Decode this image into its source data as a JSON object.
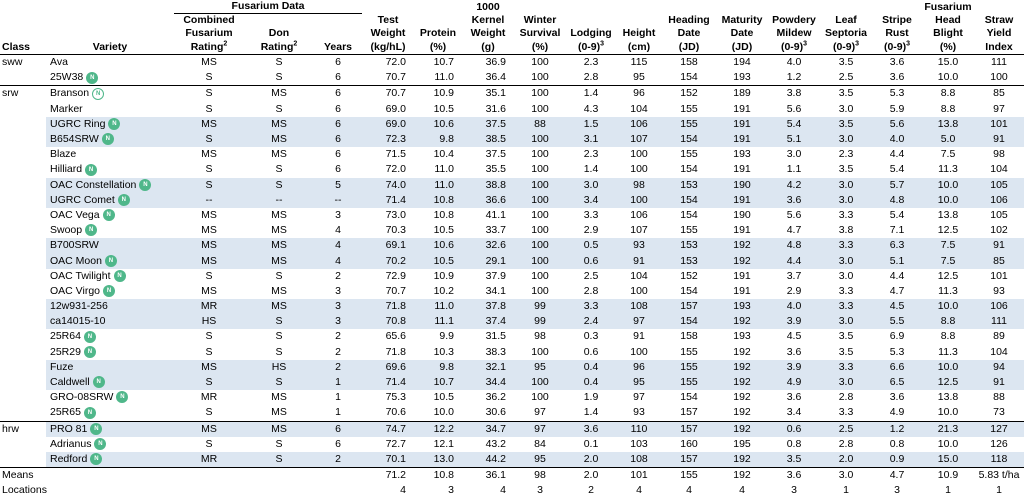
{
  "header": {
    "group_fusarium": "Fusarium Data",
    "group_kernel": "1000",
    "cols": {
      "class": "Class",
      "variety": "Variety",
      "combined_l1": "Combined",
      "combined_l2": "Fusarium",
      "combined_l3": "Rating",
      "combined_sup": "2",
      "don_l2": "Don",
      "don_l3": "Rating",
      "don_sup": "2",
      "years": "Years",
      "test_l2": "Test",
      "test_l3": "Weight",
      "test_l4": "(kg/hL)",
      "protein_l3": "Protein",
      "protein_l4": "(%)",
      "kernel_l2": "Kernel",
      "kernel_l3": "Weight",
      "kernel_l4": "(g)",
      "winter_l2": "Winter",
      "winter_l3": "Survival",
      "winter_l4": "(%)",
      "lodging_l3": "Lodging",
      "lodging_l4": "(0-9)",
      "lodging_sup": "3",
      "height_l3": "Height",
      "height_l4": "(cm)",
      "heading_l2": "Heading",
      "heading_l3": "Date",
      "heading_l4": "(JD)",
      "maturity_l2": "Maturity",
      "maturity_l3": "Date",
      "maturity_l4": "(JD)",
      "powdery_l2": "Powdery",
      "powdery_l3": "Mildew",
      "powdery_l4": "(0-9)",
      "powdery_sup": "3",
      "leaf_l2": "Leaf",
      "leaf_l3": "Septoria",
      "leaf_l4": "(0-9)",
      "leaf_sup": "3",
      "stripe_l2": "Stripe",
      "stripe_l3": "Rust",
      "stripe_l4": "(0-9)",
      "stripe_sup": "3",
      "fhb_l1": "Fusarium",
      "fhb_l2": "Head",
      "fhb_l3": "Blight",
      "fhb_l4": "(%)",
      "straw_l2": "Straw",
      "straw_l3": "Yield",
      "straw_l4": "Index"
    }
  },
  "badge_text": "N",
  "accent_color": "#4fb78a",
  "shade_color": "#dce6f1",
  "rows": [
    {
      "cls": "sww",
      "variety": "Ava",
      "badge": "",
      "shaded": false,
      "group_start": false,
      "cfr": "MS",
      "don": "S",
      "years": "6",
      "test": "72.0",
      "protein": "10.7",
      "kernel": "36.9",
      "winter": "100",
      "lodging": "2.3",
      "height": "115",
      "heading": "158",
      "maturity": "194",
      "powdery": "4.0",
      "leaf": "3.5",
      "stripe": "3.6",
      "fhb": "15.0",
      "straw": "111"
    },
    {
      "cls": "",
      "variety": "25W38",
      "badge": "solid",
      "shaded": false,
      "group_start": false,
      "cfr": "S",
      "don": "S",
      "years": "6",
      "test": "70.7",
      "protein": "11.0",
      "kernel": "36.4",
      "winter": "100",
      "lodging": "2.8",
      "height": "95",
      "heading": "154",
      "maturity": "193",
      "powdery": "1.2",
      "leaf": "2.5",
      "stripe": "3.6",
      "fhb": "10.0",
      "straw": "100"
    },
    {
      "cls": "srw",
      "variety": "Branson",
      "badge": "outline",
      "shaded": false,
      "group_start": true,
      "cfr": "S",
      "don": "MS",
      "years": "6",
      "test": "70.7",
      "protein": "10.9",
      "kernel": "35.1",
      "winter": "100",
      "lodging": "1.4",
      "height": "96",
      "heading": "152",
      "maturity": "189",
      "powdery": "3.8",
      "leaf": "3.5",
      "stripe": "5.3",
      "fhb": "8.8",
      "straw": "85"
    },
    {
      "cls": "",
      "variety": "Marker",
      "badge": "",
      "shaded": false,
      "group_start": false,
      "cfr": "S",
      "don": "S",
      "years": "6",
      "test": "69.0",
      "protein": "10.5",
      "kernel": "31.6",
      "winter": "100",
      "lodging": "4.3",
      "height": "104",
      "heading": "155",
      "maturity": "191",
      "powdery": "5.6",
      "leaf": "3.0",
      "stripe": "5.9",
      "fhb": "8.8",
      "straw": "97"
    },
    {
      "cls": "",
      "variety": "UGRC Ring",
      "badge": "solid",
      "shaded": true,
      "group_start": false,
      "cfr": "MS",
      "don": "MS",
      "years": "6",
      "test": "69.0",
      "protein": "10.6",
      "kernel": "37.5",
      "winter": "88",
      "lodging": "1.5",
      "height": "106",
      "heading": "155",
      "maturity": "191",
      "powdery": "5.4",
      "leaf": "3.5",
      "stripe": "5.6",
      "fhb": "13.8",
      "straw": "101"
    },
    {
      "cls": "",
      "variety": "B654SRW",
      "badge": "solid",
      "shaded": true,
      "group_start": false,
      "cfr": "S",
      "don": "MS",
      "years": "6",
      "test": "72.3",
      "protein": "9.8",
      "kernel": "38.5",
      "winter": "100",
      "lodging": "3.1",
      "height": "107",
      "heading": "154",
      "maturity": "191",
      "powdery": "5.1",
      "leaf": "3.0",
      "stripe": "4.0",
      "fhb": "5.0",
      "straw": "91"
    },
    {
      "cls": "",
      "variety": "Blaze",
      "badge": "",
      "shaded": false,
      "group_start": false,
      "cfr": "MS",
      "don": "MS",
      "years": "6",
      "test": "71.5",
      "protein": "10.4",
      "kernel": "37.5",
      "winter": "100",
      "lodging": "2.3",
      "height": "100",
      "heading": "155",
      "maturity": "193",
      "powdery": "3.0",
      "leaf": "2.3",
      "stripe": "4.4",
      "fhb": "7.5",
      "straw": "98"
    },
    {
      "cls": "",
      "variety": "Hilliard",
      "badge": "solid",
      "shaded": false,
      "group_start": false,
      "cfr": "S",
      "don": "S",
      "years": "6",
      "test": "72.0",
      "protein": "11.0",
      "kernel": "35.5",
      "winter": "100",
      "lodging": "1.4",
      "height": "100",
      "heading": "154",
      "maturity": "191",
      "powdery": "1.1",
      "leaf": "3.5",
      "stripe": "5.4",
      "fhb": "11.3",
      "straw": "104"
    },
    {
      "cls": "",
      "variety": "OAC Constellation",
      "badge": "solid",
      "shaded": true,
      "group_start": false,
      "cfr": "S",
      "don": "S",
      "years": "5",
      "test": "74.0",
      "protein": "11.0",
      "kernel": "38.8",
      "winter": "100",
      "lodging": "3.0",
      "height": "98",
      "heading": "153",
      "maturity": "190",
      "powdery": "4.2",
      "leaf": "3.0",
      "stripe": "5.7",
      "fhb": "10.0",
      "straw": "105"
    },
    {
      "cls": "",
      "variety": "UGRC Comet",
      "badge": "solid",
      "shaded": true,
      "group_start": false,
      "cfr": "--",
      "don": "--",
      "years": "--",
      "test": "71.4",
      "protein": "10.8",
      "kernel": "36.6",
      "winter": "100",
      "lodging": "3.4",
      "height": "100",
      "heading": "154",
      "maturity": "191",
      "powdery": "3.6",
      "leaf": "3.0",
      "stripe": "4.8",
      "fhb": "10.0",
      "straw": "106"
    },
    {
      "cls": "",
      "variety": "OAC Vega",
      "badge": "solid",
      "shaded": false,
      "group_start": false,
      "cfr": "MS",
      "don": "MS",
      "years": "3",
      "test": "73.0",
      "protein": "10.8",
      "kernel": "41.1",
      "winter": "100",
      "lodging": "3.3",
      "height": "106",
      "heading": "154",
      "maturity": "190",
      "powdery": "5.6",
      "leaf": "3.3",
      "stripe": "5.4",
      "fhb": "13.8",
      "straw": "105"
    },
    {
      "cls": "",
      "variety": "Swoop",
      "badge": "solid",
      "shaded": false,
      "group_start": false,
      "cfr": "MS",
      "don": "MS",
      "years": "4",
      "test": "70.3",
      "protein": "10.5",
      "kernel": "33.7",
      "winter": "100",
      "lodging": "2.9",
      "height": "107",
      "heading": "155",
      "maturity": "191",
      "powdery": "4.7",
      "leaf": "3.8",
      "stripe": "7.1",
      "fhb": "12.5",
      "straw": "102"
    },
    {
      "cls": "",
      "variety": "B700SRW",
      "badge": "",
      "shaded": true,
      "group_start": false,
      "cfr": "MS",
      "don": "MS",
      "years": "4",
      "test": "69.1",
      "protein": "10.6",
      "kernel": "32.6",
      "winter": "100",
      "lodging": "0.5",
      "height": "93",
      "heading": "153",
      "maturity": "192",
      "powdery": "4.8",
      "leaf": "3.3",
      "stripe": "6.3",
      "fhb": "7.5",
      "straw": "91"
    },
    {
      "cls": "",
      "variety": "OAC Moon",
      "badge": "solid",
      "shaded": true,
      "group_start": false,
      "cfr": "MS",
      "don": "MS",
      "years": "4",
      "test": "70.2",
      "protein": "10.5",
      "kernel": "29.1",
      "winter": "100",
      "lodging": "0.6",
      "height": "91",
      "heading": "153",
      "maturity": "192",
      "powdery": "4.4",
      "leaf": "3.0",
      "stripe": "5.1",
      "fhb": "7.5",
      "straw": "85"
    },
    {
      "cls": "",
      "variety": "OAC Twilight",
      "badge": "solid",
      "shaded": false,
      "group_start": false,
      "cfr": "S",
      "don": "S",
      "years": "2",
      "test": "72.9",
      "protein": "10.9",
      "kernel": "37.9",
      "winter": "100",
      "lodging": "2.5",
      "height": "104",
      "heading": "152",
      "maturity": "191",
      "powdery": "3.7",
      "leaf": "3.0",
      "stripe": "4.4",
      "fhb": "12.5",
      "straw": "101"
    },
    {
      "cls": "",
      "variety": "OAC Virgo",
      "badge": "solid",
      "shaded": false,
      "group_start": false,
      "cfr": "MS",
      "don": "MS",
      "years": "3",
      "test": "70.7",
      "protein": "10.2",
      "kernel": "34.1",
      "winter": "100",
      "lodging": "2.8",
      "height": "100",
      "heading": "154",
      "maturity": "191",
      "powdery": "2.9",
      "leaf": "3.3",
      "stripe": "4.7",
      "fhb": "11.3",
      "straw": "93"
    },
    {
      "cls": "",
      "variety": "12w931-256",
      "badge": "",
      "shaded": true,
      "group_start": false,
      "cfr": "MR",
      "don": "MS",
      "years": "3",
      "test": "71.8",
      "protein": "11.0",
      "kernel": "37.8",
      "winter": "99",
      "lodging": "3.3",
      "height": "108",
      "heading": "157",
      "maturity": "193",
      "powdery": "4.0",
      "leaf": "3.3",
      "stripe": "4.5",
      "fhb": "10.0",
      "straw": "106"
    },
    {
      "cls": "",
      "variety": "ca14015-10",
      "badge": "",
      "shaded": true,
      "group_start": false,
      "cfr": "HS",
      "don": "S",
      "years": "3",
      "test": "70.8",
      "protein": "11.1",
      "kernel": "37.4",
      "winter": "99",
      "lodging": "2.4",
      "height": "97",
      "heading": "154",
      "maturity": "192",
      "powdery": "3.9",
      "leaf": "3.0",
      "stripe": "5.5",
      "fhb": "8.8",
      "straw": "111"
    },
    {
      "cls": "",
      "variety": "25R64",
      "badge": "solid",
      "shaded": false,
      "group_start": false,
      "cfr": "S",
      "don": "S",
      "years": "2",
      "test": "65.6",
      "protein": "9.9",
      "kernel": "31.5",
      "winter": "98",
      "lodging": "0.3",
      "height": "91",
      "heading": "158",
      "maturity": "193",
      "powdery": "4.5",
      "leaf": "3.5",
      "stripe": "6.9",
      "fhb": "8.8",
      "straw": "89"
    },
    {
      "cls": "",
      "variety": "25R29",
      "badge": "solid",
      "shaded": false,
      "group_start": false,
      "cfr": "S",
      "don": "S",
      "years": "2",
      "test": "71.8",
      "protein": "10.3",
      "kernel": "38.3",
      "winter": "100",
      "lodging": "0.6",
      "height": "100",
      "heading": "155",
      "maturity": "192",
      "powdery": "3.6",
      "leaf": "3.5",
      "stripe": "5.3",
      "fhb": "11.3",
      "straw": "104"
    },
    {
      "cls": "",
      "variety": "Fuze",
      "badge": "",
      "shaded": true,
      "group_start": false,
      "cfr": "MS",
      "don": "HS",
      "years": "2",
      "test": "69.6",
      "protein": "9.8",
      "kernel": "32.1",
      "winter": "95",
      "lodging": "0.4",
      "height": "96",
      "heading": "155",
      "maturity": "192",
      "powdery": "3.9",
      "leaf": "3.3",
      "stripe": "6.6",
      "fhb": "10.0",
      "straw": "94"
    },
    {
      "cls": "",
      "variety": "Caldwell",
      "badge": "solid",
      "shaded": true,
      "group_start": false,
      "cfr": "S",
      "don": "S",
      "years": "1",
      "test": "71.4",
      "protein": "10.7",
      "kernel": "34.4",
      "winter": "100",
      "lodging": "0.4",
      "height": "95",
      "heading": "155",
      "maturity": "192",
      "powdery": "4.9",
      "leaf": "3.0",
      "stripe": "6.5",
      "fhb": "12.5",
      "straw": "91"
    },
    {
      "cls": "",
      "variety": "GRO-08SRW",
      "badge": "solid",
      "shaded": false,
      "group_start": false,
      "cfr": "MR",
      "don": "MS",
      "years": "1",
      "test": "75.3",
      "protein": "10.5",
      "kernel": "36.2",
      "winter": "100",
      "lodging": "1.9",
      "height": "97",
      "heading": "154",
      "maturity": "192",
      "powdery": "3.6",
      "leaf": "2.8",
      "stripe": "3.6",
      "fhb": "13.8",
      "straw": "88"
    },
    {
      "cls": "",
      "variety": "25R65",
      "badge": "solid",
      "shaded": false,
      "group_start": false,
      "cfr": "S",
      "don": "MS",
      "years": "1",
      "test": "70.6",
      "protein": "10.0",
      "kernel": "30.6",
      "winter": "97",
      "lodging": "1.4",
      "height": "93",
      "heading": "157",
      "maturity": "192",
      "powdery": "3.4",
      "leaf": "3.3",
      "stripe": "4.9",
      "fhb": "10.0",
      "straw": "73"
    },
    {
      "cls": "hrw",
      "variety": "PRO 81",
      "badge": "solid",
      "shaded": true,
      "group_start": true,
      "cfr": "MS",
      "don": "MS",
      "years": "6",
      "test": "74.7",
      "protein": "12.2",
      "kernel": "34.7",
      "winter": "97",
      "lodging": "3.6",
      "height": "110",
      "heading": "157",
      "maturity": "192",
      "powdery": "0.6",
      "leaf": "2.5",
      "stripe": "1.2",
      "fhb": "21.3",
      "straw": "127"
    },
    {
      "cls": "",
      "variety": "Adrianus",
      "badge": "solid",
      "shaded": false,
      "group_start": false,
      "cfr": "S",
      "don": "S",
      "years": "6",
      "test": "72.7",
      "protein": "12.1",
      "kernel": "43.2",
      "winter": "84",
      "lodging": "0.1",
      "height": "103",
      "heading": "160",
      "maturity": "195",
      "powdery": "0.8",
      "leaf": "2.8",
      "stripe": "0.8",
      "fhb": "10.0",
      "straw": "126"
    },
    {
      "cls": "",
      "variety": "Redford",
      "badge": "solid",
      "shaded": true,
      "group_start": false,
      "cfr": "MR",
      "don": "S",
      "years": "2",
      "test": "70.1",
      "protein": "13.0",
      "kernel": "44.2",
      "winter": "95",
      "lodging": "2.0",
      "height": "108",
      "heading": "157",
      "maturity": "192",
      "powdery": "3.5",
      "leaf": "2.0",
      "stripe": "0.9",
      "fhb": "15.0",
      "straw": "118"
    }
  ],
  "means": {
    "label": "Means",
    "test": "71.2",
    "protein": "10.8",
    "kernel": "36.1",
    "winter": "98",
    "lodging": "2.0",
    "height": "101",
    "heading": "155",
    "maturity": "192",
    "powdery": "3.6",
    "leaf": "3.0",
    "stripe": "4.7",
    "fhb": "10.9",
    "straw": "5.83 t/ha"
  },
  "locations": {
    "label": "Locations",
    "test": "4",
    "protein": "3",
    "kernel": "4",
    "winter": "3",
    "lodging": "2",
    "height": "4",
    "heading": "4",
    "maturity": "4",
    "powdery": "3",
    "leaf": "1",
    "stripe": "3",
    "fhb": "1",
    "straw": "1"
  }
}
